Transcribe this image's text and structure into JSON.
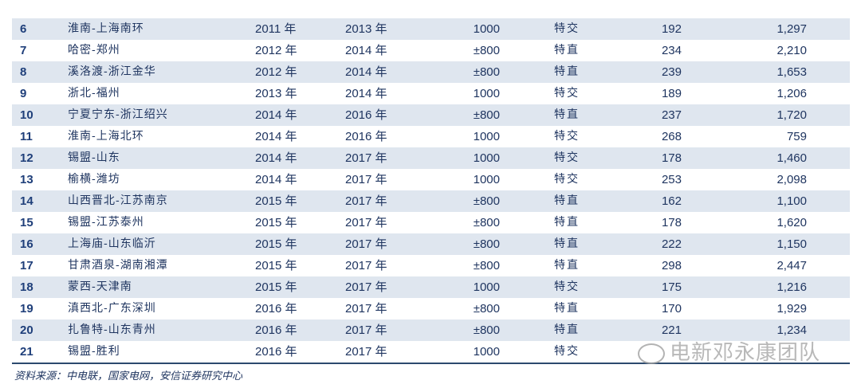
{
  "table": {
    "rows": [
      [
        "6",
        "淮南-上海南环",
        "2011 年",
        "2013 年",
        "1000",
        "特交",
        "192",
        "1,297"
      ],
      [
        "7",
        "哈密-郑州",
        "2012 年",
        "2014 年",
        "±800",
        "特直",
        "234",
        "2,210"
      ],
      [
        "8",
        "溪洛渡-浙江金华",
        "2012 年",
        "2014 年",
        "±800",
        "特直",
        "239",
        "1,653"
      ],
      [
        "9",
        "浙北-福州",
        "2013 年",
        "2014 年",
        "1000",
        "特交",
        "189",
        "1,206"
      ],
      [
        "10",
        "宁夏宁东-浙江绍兴",
        "2014 年",
        "2016 年",
        "±800",
        "特直",
        "237",
        "1,720"
      ],
      [
        "11",
        "淮南-上海北环",
        "2014 年",
        "2016 年",
        "1000",
        "特交",
        "268",
        "759"
      ],
      [
        "12",
        "锡盟-山东",
        "2014 年",
        "2017 年",
        "1000",
        "特交",
        "178",
        "1,460"
      ],
      [
        "13",
        "榆横-潍坊",
        "2014 年",
        "2017 年",
        "1000",
        "特交",
        "253",
        "2,098"
      ],
      [
        "14",
        "山西晋北-江苏南京",
        "2015 年",
        "2017 年",
        "±800",
        "特直",
        "162",
        "1,100"
      ],
      [
        "15",
        "锡盟-江苏泰州",
        "2015 年",
        "2017 年",
        "±800",
        "特直",
        "178",
        "1,620"
      ],
      [
        "16",
        "上海庙-山东临沂",
        "2015 年",
        "2017 年",
        "±800",
        "特直",
        "222",
        "1,150"
      ],
      [
        "17",
        "甘肃酒泉-湖南湘潭",
        "2015 年",
        "2017 年",
        "±800",
        "特直",
        "298",
        "2,447"
      ],
      [
        "18",
        "蒙西-天津南",
        "2015 年",
        "2017 年",
        "1000",
        "特交",
        "175",
        "1,216"
      ],
      [
        "19",
        "滇西北-广东深圳",
        "2016 年",
        "2017 年",
        "±800",
        "特直",
        "170",
        "1,929"
      ],
      [
        "20",
        "扎鲁特-山东青州",
        "2016 年",
        "2017 年",
        "±800",
        "特直",
        "221",
        "1,234"
      ],
      [
        "21",
        "锡盟-胜利",
        "2016 年",
        "2017 年",
        "1000",
        "特交",
        "",
        ""
      ]
    ],
    "shade_color": "#dfe6ef"
  },
  "source": "资料来源：中电联，国家电网，安信证券研究中心",
  "watermark": "电新邓永康团队"
}
